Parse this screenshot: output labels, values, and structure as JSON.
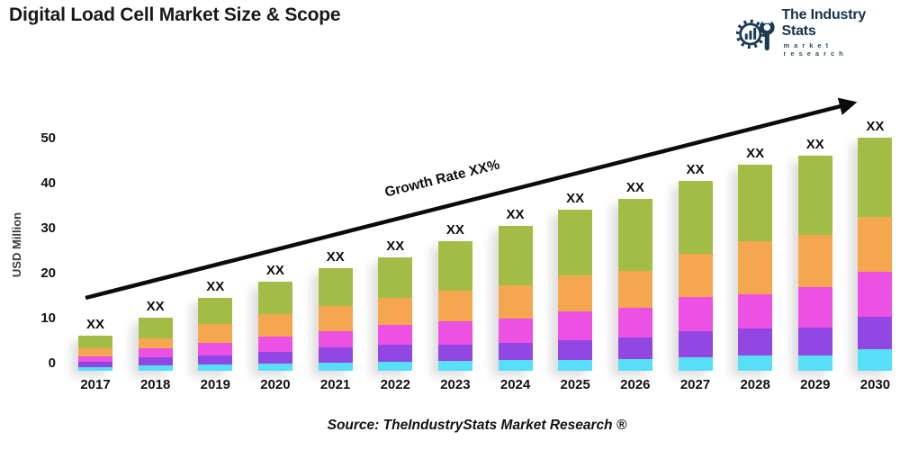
{
  "title": "Digital Load Cell Market Size & Scope",
  "logo": {
    "name": "The Industry Stats",
    "tagline": "market research",
    "color": "#1b3a55"
  },
  "source": "Source: TheIndustryStats Market Research ®",
  "chart_data": {
    "type": "bar",
    "stacked": true,
    "title": "Digital Load Cell Market Size & Scope",
    "ylabel": "USD Million",
    "yticks": [
      0,
      10,
      20,
      30,
      40,
      50
    ],
    "ylim": [
      -1.6,
      55
    ],
    "grid": false,
    "legend": false,
    "annotation": "Growth Rate XX%",
    "bar_value_label": "XX",
    "baseline_value": -1.6,
    "categories": [
      "2017",
      "2018",
      "2019",
      "2020",
      "2021",
      "2022",
      "2023",
      "2024",
      "2025",
      "2026",
      "2027",
      "2028",
      "2029",
      "2030"
    ],
    "series": [
      {
        "name": "series-1-cyan",
        "color": "#58DFF8",
        "values": [
          0.9,
          1.2,
          1.5,
          1.6,
          1.8,
          2.1,
          2.3,
          2.4,
          2.4,
          2.7,
          3.1,
          3.5,
          3.5,
          4.8
        ]
      },
      {
        "name": "series-2-purple",
        "color": "#9247E3",
        "values": [
          1.1,
          1.8,
          2.0,
          2.6,
          3.4,
          3.7,
          3.6,
          3.8,
          4.4,
          4.7,
          5.8,
          6.0,
          6.1,
          7.2
        ]
      },
      {
        "name": "series-3-magenta",
        "color": "#EC51E4",
        "values": [
          1.3,
          2.0,
          2.7,
          3.4,
          3.6,
          4.5,
          5.2,
          5.4,
          6.4,
          6.6,
          7.5,
          7.5,
          9.0,
          10.0
        ]
      },
      {
        "name": "series-4-orange",
        "color": "#F4A74E",
        "values": [
          1.7,
          2.2,
          4.3,
          5.0,
          5.6,
          5.9,
          6.7,
          7.4,
          8.0,
          8.3,
          9.7,
          11.9,
          11.6,
          12.3
        ]
      },
      {
        "name": "series-5-green",
        "color": "#A2BC45",
        "values": [
          2.8,
          4.6,
          5.8,
          7.2,
          8.4,
          9.1,
          11.0,
          13.3,
          14.6,
          16.0,
          16.2,
          16.9,
          17.6,
          17.5
        ]
      }
    ],
    "totals_above_zero": [
      6.0,
      10.0,
      14.5,
      18.0,
      21.0,
      23.5,
      27.0,
      30.5,
      34.0,
      36.5,
      40.5,
      44.0,
      46.0,
      50.0
    ]
  }
}
